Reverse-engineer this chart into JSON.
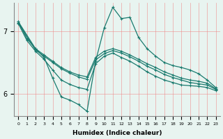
{
  "xlabel": "Humidex (Indice chaleur)",
  "bg_color": "#e8f4f0",
  "plot_bg": "#ffffff",
  "line_color": "#1a7a6e",
  "grid_color": "#f08080",
  "xlim": [
    -0.5,
    23.5
  ],
  "ylim": [
    5.65,
    7.45
  ],
  "yticks": [
    6,
    7
  ],
  "xticks": [
    0,
    1,
    2,
    3,
    4,
    5,
    6,
    7,
    8,
    9,
    10,
    11,
    12,
    13,
    14,
    15,
    16,
    17,
    18,
    19,
    20,
    21,
    22,
    23
  ],
  "series": {
    "line_main": {
      "x": [
        0,
        1,
        2,
        3,
        4,
        5,
        6,
        7,
        8,
        9,
        10,
        11,
        12,
        13,
        14,
        15,
        16,
        17,
        18,
        19,
        20,
        21,
        22,
        23
      ],
      "y": [
        7.15,
        6.88,
        6.72,
        6.58,
        6.25,
        5.95,
        5.9,
        5.83,
        5.72,
        6.52,
        7.05,
        7.38,
        7.2,
        7.22,
        6.9,
        6.72,
        6.6,
        6.5,
        6.45,
        6.42,
        6.38,
        6.32,
        6.22,
        6.1
      ]
    },
    "line_top": {
      "x": [
        0,
        2,
        3,
        4,
        5,
        6,
        7,
        8,
        9,
        10,
        11,
        12,
        13,
        14,
        15,
        16,
        17,
        18,
        19,
        20,
        21,
        22,
        23
      ],
      "y": [
        7.15,
        6.72,
        6.62,
        6.52,
        6.42,
        6.35,
        6.3,
        6.27,
        6.58,
        6.68,
        6.72,
        6.68,
        6.62,
        6.55,
        6.48,
        6.42,
        6.35,
        6.3,
        6.25,
        6.22,
        6.2,
        6.17,
        6.08
      ]
    },
    "line_mid1": {
      "x": [
        0,
        2,
        3,
        4,
        5,
        6,
        7,
        8,
        9,
        10,
        11,
        12,
        13,
        14,
        15,
        16,
        17,
        18,
        19,
        20,
        21,
        22,
        23
      ],
      "y": [
        7.13,
        6.7,
        6.6,
        6.5,
        6.4,
        6.33,
        6.27,
        6.23,
        6.54,
        6.64,
        6.69,
        6.65,
        6.59,
        6.52,
        6.44,
        6.38,
        6.31,
        6.26,
        6.22,
        6.18,
        6.16,
        6.14,
        6.07
      ]
    },
    "line_bot": {
      "x": [
        0,
        1,
        2,
        3,
        4,
        5,
        6,
        7,
        8,
        9,
        10,
        11,
        12,
        13,
        14,
        15,
        16,
        17,
        18,
        19,
        20,
        21,
        22,
        23
      ],
      "y": [
        7.12,
        6.85,
        6.68,
        6.55,
        6.38,
        6.22,
        6.15,
        6.1,
        6.07,
        6.48,
        6.6,
        6.65,
        6.58,
        6.52,
        6.44,
        6.35,
        6.28,
        6.22,
        6.18,
        6.14,
        6.13,
        6.12,
        6.1,
        6.05
      ]
    }
  },
  "marker": "+",
  "markersize": 3,
  "linewidth": 0.9
}
